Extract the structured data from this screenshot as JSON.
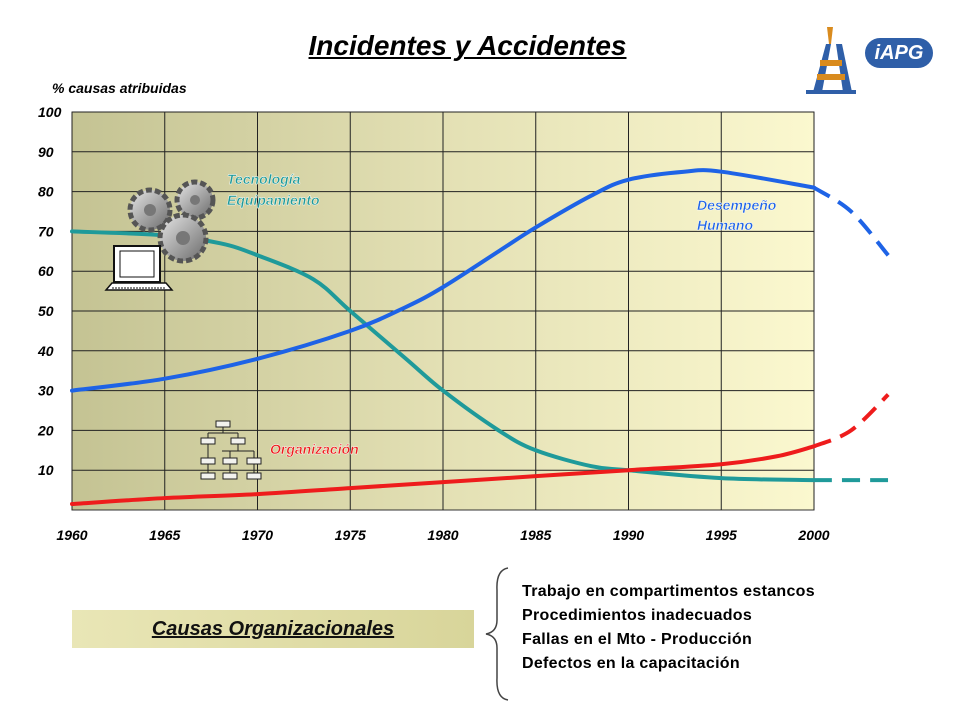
{
  "title": "Incidentes y Accidentes",
  "chart_data": {
    "type": "line",
    "ylabel": "% causas atribuidas",
    "xlabel": "",
    "xlim": [
      1960,
      2000
    ],
    "ylim": [
      0,
      100
    ],
    "x_ticks": [
      1960,
      1965,
      1970,
      1975,
      1980,
      1985,
      1990,
      1995,
      2000
    ],
    "y_ticks": [
      10,
      20,
      30,
      40,
      50,
      60,
      70,
      80,
      90,
      100
    ],
    "grid": true,
    "series": [
      {
        "name": "Tecnología Equipamiento",
        "color": "#1f9a9a",
        "x": [
          1960,
          1965,
          1968,
          1970,
          1973,
          1975,
          1978,
          1980,
          1983,
          1985,
          1988,
          1990,
          1995,
          2000
        ],
        "y": [
          70,
          69,
          67,
          64,
          58,
          50,
          38,
          30,
          20,
          15,
          11,
          10,
          8,
          7.5
        ],
        "projection": {
          "x": [
            2000,
            2004
          ],
          "y": [
            7.5,
            7.5
          ]
        }
      },
      {
        "name": "Desempeño Humano",
        "color": "#1e63e6",
        "x": [
          1960,
          1965,
          1970,
          1975,
          1978,
          1980,
          1983,
          1985,
          1988,
          1990,
          1993,
          1995,
          2000
        ],
        "y": [
          30,
          33,
          38,
          45,
          51,
          56,
          65,
          71,
          79,
          83,
          85,
          85,
          81
        ],
        "projection": {
          "x": [
            2000,
            2002,
            2004
          ],
          "y": [
            81,
            75,
            64
          ]
        }
      },
      {
        "name": "Organización",
        "color": "#ee1c1c",
        "x": [
          1960,
          1965,
          1970,
          1975,
          1980,
          1985,
          1990,
          1995,
          1998,
          2000
        ],
        "y": [
          1.5,
          3,
          4,
          5.5,
          7,
          8.5,
          10,
          11.5,
          13.5,
          16
        ],
        "projection": {
          "x": [
            2000,
            2002,
            2004
          ],
          "y": [
            16,
            20,
            29
          ]
        }
      }
    ]
  },
  "labels": {
    "tecnologia_line1": "Tecnología",
    "tecnologia_line2": "Equipamiento",
    "desempeno_line1": "Desempeño",
    "desempeno_line2": "Humano",
    "organizacion": "Organización"
  },
  "org_band": {
    "label": "Causas Organizacionales"
  },
  "causes": [
    "Trabajo en compartimentos estancos",
    "Procedimientos inadecuados",
    "Fallas en el Mto - Producción",
    "Defectos en la capacitación"
  ],
  "logos": {
    "right_badge": "iAPG"
  },
  "icons": [
    "gears-icon",
    "laptop-icon",
    "org-chart-icon",
    "brace-icon",
    "oil-rig-logo"
  ]
}
